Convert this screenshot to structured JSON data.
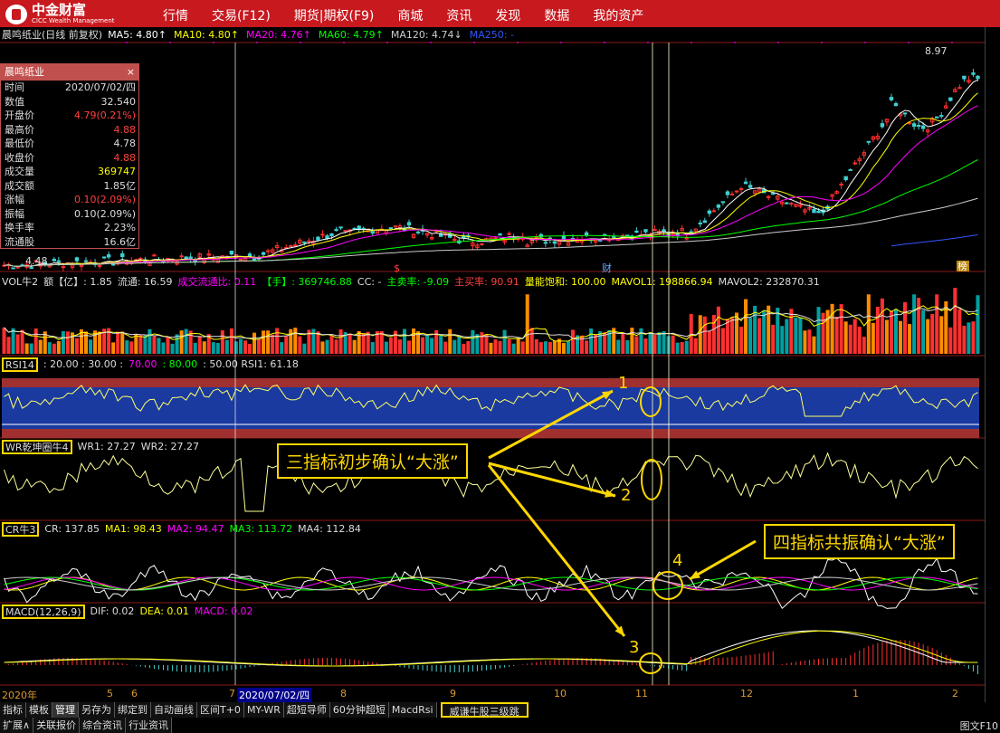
{
  "app": {
    "logo_cn": "中金财富",
    "logo_en": "CICC Wealth Management"
  },
  "menu": [
    "行情",
    "交易(F12)",
    "期货|期权(F9)",
    "商城",
    "资讯",
    "发现",
    "数据",
    "我的资产"
  ],
  "main_header": {
    "title": "晨鸣纸业(日线 前复权)",
    "ma": [
      {
        "t": "MA5: 4.80",
        "c": "#ffffff",
        "a": "↑"
      },
      {
        "t": "MA10: 4.80",
        "c": "#ffff00",
        "a": "↑"
      },
      {
        "t": "MA20: 4.76",
        "c": "#ff00ff",
        "a": "↑"
      },
      {
        "t": "MA60: 4.79",
        "c": "#00ff00",
        "a": "↑"
      },
      {
        "t": "MA120: 4.74",
        "c": "#cccccc",
        "a": "↓"
      },
      {
        "t": "MA250: -",
        "c": "#3355ff",
        "a": ""
      }
    ]
  },
  "price_labels": {
    "high": "8.97",
    "low": "4.48"
  },
  "markers": {
    "s": "$",
    "cai": "财",
    "bang": "榜"
  },
  "info": {
    "title": "晨鸣纸业",
    "close": "×",
    "rows": [
      {
        "k": "时间",
        "v": "2020/07/02/四",
        "c": "#dddddd"
      },
      {
        "k": "数值",
        "v": "32.540",
        "c": "#dddddd"
      },
      {
        "k": "开盘价",
        "v": "4.79(0.21%)",
        "c": "#ff4040"
      },
      {
        "k": "最高价",
        "v": "4.88",
        "c": "#ff4040"
      },
      {
        "k": "最低价",
        "v": "4.78",
        "c": "#dddddd"
      },
      {
        "k": "收盘价",
        "v": "4.88",
        "c": "#ff4040"
      },
      {
        "k": "成交量",
        "v": "369747",
        "c": "#ffff00"
      },
      {
        "k": "成交额",
        "v": "1.85亿",
        "c": "#dddddd"
      },
      {
        "k": "涨幅",
        "v": "0.10(2.09%)",
        "c": "#ff4040"
      },
      {
        "k": "振幅",
        "v": "0.10(2.09%)",
        "c": "#dddddd"
      },
      {
        "k": "换手率",
        "v": "2.23%",
        "c": "#dddddd"
      },
      {
        "k": "流通股",
        "v": "16.6亿",
        "c": "#dddddd"
      }
    ]
  },
  "vol_header": [
    {
      "t": "VOL牛2",
      "c": "#dddddd"
    },
    {
      "t": "额【亿】: 1.85",
      "c": "#dddddd"
    },
    {
      "t": "流通: 16.59",
      "c": "#dddddd"
    },
    {
      "t": "成交流通比: 0.11",
      "c": "#ff00ff"
    },
    {
      "t": "【手】: 369746.88",
      "c": "#00ff00"
    },
    {
      "t": "CC: -",
      "c": "#dddddd"
    },
    {
      "t": "主卖率: -9.09",
      "c": "#00ff00"
    },
    {
      "t": "主买率: 90.91",
      "c": "#ff4040"
    },
    {
      "t": "量能饱和: 100.00",
      "c": "#ffff00"
    },
    {
      "t": "MAVOL1: 198866.94",
      "c": "#ffff00"
    },
    {
      "t": "MAVOL2: 232870.31",
      "c": "#dddddd"
    }
  ],
  "rsi_header": [
    {
      "t": "RSI14",
      "c": "#dddddd"
    },
    {
      "t": ": 20.00 : 30.00 :",
      "c": "#dddddd"
    },
    {
      "t": "70.00",
      "c": "#ff00ff"
    },
    {
      "t": ": 80.00",
      "c": "#00ff00"
    },
    {
      "t": ": 50.00  RSI1: 61.18",
      "c": "#dddddd"
    }
  ],
  "wr_header": [
    {
      "t": "WR乾坤圈牛4",
      "c": "#dddddd"
    },
    {
      "t": "WR1: 27.27",
      "c": "#dddddd"
    },
    {
      "t": "WR2: 27.27",
      "c": "#dddddd"
    }
  ],
  "cr_header": [
    {
      "t": "CR牛3",
      "c": "#dddddd"
    },
    {
      "t": "CR: 137.85",
      "c": "#dddddd"
    },
    {
      "t": "MA1: 98.43",
      "c": "#ffff00"
    },
    {
      "t": "MA2: 94.47",
      "c": "#ff00ff"
    },
    {
      "t": "MA3: 113.72",
      "c": "#00ff00"
    },
    {
      "t": "MA4: 112.84",
      "c": "#dddddd"
    }
  ],
  "macd_header": [
    {
      "t": "MACD(12,26,9)",
      "c": "#dddddd"
    },
    {
      "t": "DIF: 0.02",
      "c": "#dddddd"
    },
    {
      "t": "DEA: 0.01",
      "c": "#ffff00"
    },
    {
      "t": "MACD: 0.02",
      "c": "#ff00ff"
    }
  ],
  "time_axis": [
    "2020年",
    "5",
    "6",
    "7",
    "2020/07/02/四",
    "8",
    "9",
    "10",
    "11",
    "12",
    "1",
    "2"
  ],
  "annotations": {
    "note1": "三指标初步确认“大涨”",
    "note2": "四指标共振确认“大涨”",
    "n1": "1",
    "n2": "2",
    "n3": "3",
    "n4": "4"
  },
  "tabs_row1": [
    "指标",
    "模板",
    "管理",
    "另存为",
    "绑定到",
    "自动画线",
    "区间T+0",
    "MY-WR",
    "超短导师",
    "60分钟超短",
    "MacdRsi",
    "威谦牛股三级跳"
  ],
  "tabs_row2": [
    "扩展∧",
    "关联报价",
    "综合资讯",
    "行业资讯"
  ],
  "footer_right": "图文F10"
}
